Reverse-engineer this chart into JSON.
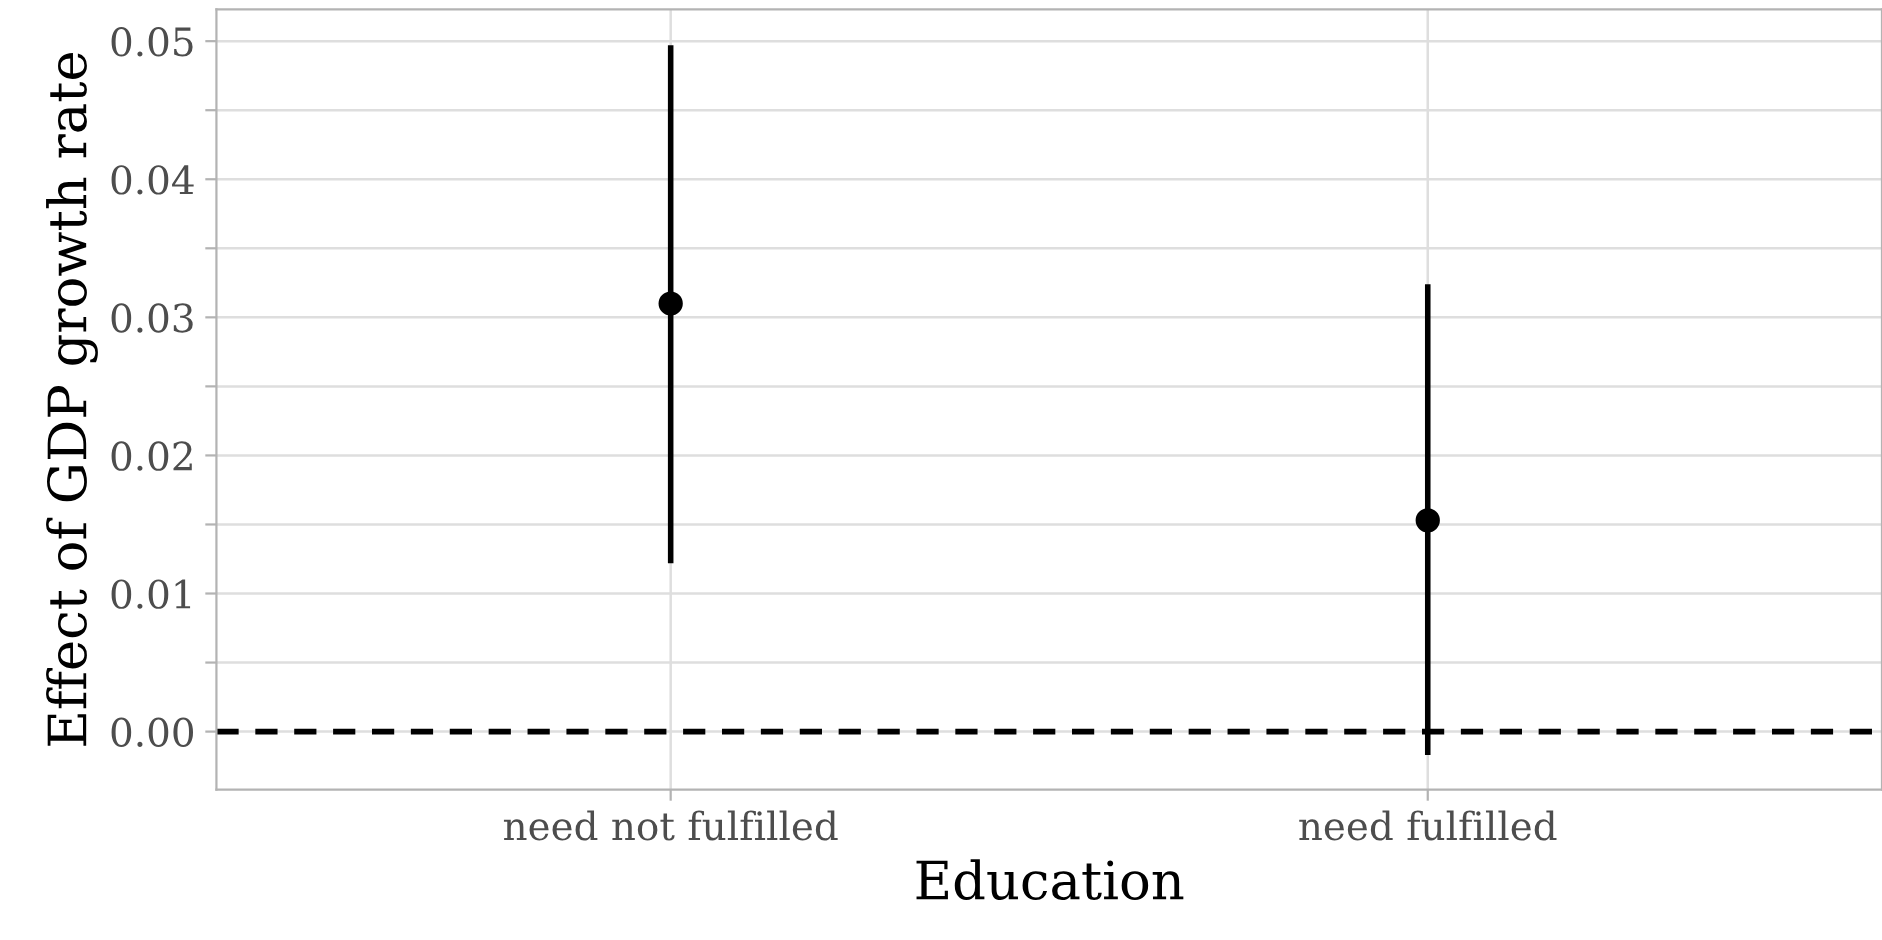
{
  "chart_data": {
    "type": "scatter",
    "xlabel": "Education",
    "ylabel": "Effect of GDP growth rate",
    "categories": [
      "need not fulfilled",
      "need fulfilled"
    ],
    "values": [
      0.031,
      0.0153
    ],
    "errors": [
      [
        0.0122,
        0.0497
      ],
      [
        -0.0017,
        0.0324
      ]
    ],
    "color": "#000000",
    "marker": "circle",
    "ylim": [
      -0.0042,
      0.0523
    ],
    "yticks": [
      {
        "value": 0,
        "label": "0.00"
      },
      {
        "value": 0.005,
        "label": null
      },
      {
        "value": 0.01,
        "label": "0.01"
      },
      {
        "value": 0.015,
        "label": null
      },
      {
        "value": 0.02,
        "label": "0.02"
      },
      {
        "value": 0.025,
        "label": null
      },
      {
        "value": 0.03,
        "label": "0.03"
      },
      {
        "value": 0.035,
        "label": null
      },
      {
        "value": 0.04,
        "label": "0.04"
      },
      {
        "value": 0.045,
        "label": null
      },
      {
        "value": 0.05,
        "label": "0.05"
      }
    ],
    "ref_lines": [
      {
        "axis": "y",
        "value": 0,
        "label": null,
        "color": "#000000",
        "line_style": "dashed"
      }
    ],
    "grid": true
  }
}
